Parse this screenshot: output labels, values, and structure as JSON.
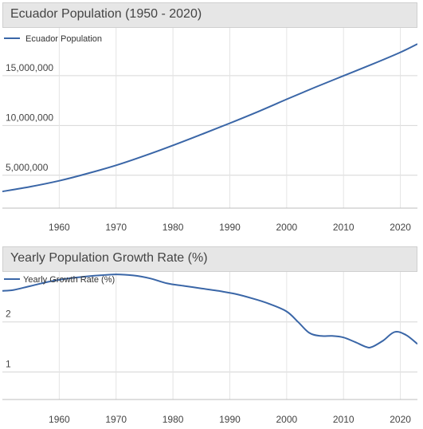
{
  "chart_data": [
    {
      "type": "line",
      "title": "Ecuador Population (1950 - 2020)",
      "series": [
        {
          "name": "Ecuador Population",
          "color": "#3a66a7",
          "x": [
            1950,
            1955,
            1960,
            1965,
            1970,
            1975,
            1980,
            1985,
            1990,
            1995,
            2000,
            2005,
            2010,
            2015,
            2020,
            2023
          ],
          "values": [
            3370000,
            3860000,
            4450000,
            5180000,
            6000000,
            6960000,
            8000000,
            9100000,
            10230000,
            11400000,
            12630000,
            13830000,
            14990000,
            16140000,
            17350000,
            18190000
          ]
        }
      ],
      "xlim": [
        1950,
        2023
      ],
      "ylim": [
        1700000,
        19800000
      ],
      "x_ticks": [
        1960,
        1970,
        1980,
        1990,
        2000,
        2010,
        2020
      ],
      "x_tick_labels": [
        "1960",
        "1970",
        "1980",
        "1990",
        "2000",
        "2010",
        "2020"
      ],
      "y_ticks": [
        5000000,
        10000000,
        15000000
      ],
      "y_tick_labels": [
        "5,000,000",
        "10,000,000",
        "15,000,000"
      ],
      "legend": "top-left",
      "grid": "horizontal + vertical"
    },
    {
      "type": "line",
      "title": "Yearly Population Growth Rate (%)",
      "series": [
        {
          "name": "Yearly Growth Rate (%)",
          "color": "#3a66a7",
          "x": [
            1950,
            1952,
            1955,
            1958,
            1961,
            1964,
            1967,
            1970,
            1973,
            1976,
            1979,
            1982,
            1985,
            1988,
            1991,
            1994,
            1997,
            2000,
            2002,
            2004,
            2006,
            2008,
            2010,
            2012,
            2014,
            2015,
            2017,
            2019,
            2021,
            2023
          ],
          "values": [
            2.62,
            2.64,
            2.72,
            2.8,
            2.86,
            2.9,
            2.93,
            2.95,
            2.93,
            2.87,
            2.77,
            2.72,
            2.67,
            2.62,
            2.56,
            2.47,
            2.36,
            2.21,
            2.0,
            1.78,
            1.72,
            1.72,
            1.69,
            1.6,
            1.5,
            1.5,
            1.63,
            1.8,
            1.74,
            1.56
          ]
        }
      ],
      "xlim": [
        1950,
        2023
      ],
      "ylim": [
        0.45,
        3.0
      ],
      "x_ticks": [
        1960,
        1970,
        1980,
        1990,
        2000,
        2010,
        2020
      ],
      "x_tick_labels": [
        "1960",
        "1970",
        "1980",
        "1990",
        "2000",
        "2010",
        "2020"
      ],
      "y_ticks": [
        1,
        2
      ],
      "y_tick_labels": [
        "1",
        "2"
      ],
      "legend": "top-left",
      "grid": "horizontal + vertical"
    }
  ]
}
